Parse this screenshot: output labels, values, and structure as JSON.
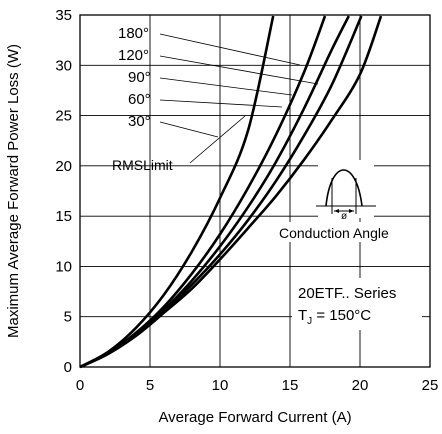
{
  "chart_data": {
    "type": "line",
    "title": "",
    "xlabel": "Average Forward Current (A)",
    "ylabel": "Maximum Average Forward Power Loss (W)",
    "xlim": [
      0,
      25
    ],
    "ylim": [
      0,
      35
    ],
    "x_ticks": [
      0,
      5,
      10,
      15,
      20,
      25
    ],
    "y_ticks": [
      0,
      5,
      10,
      15,
      20,
      25,
      30,
      35
    ],
    "grid": true,
    "series": [
      {
        "name": "180°",
        "x": [
          0,
          2,
          4,
          6,
          8,
          10,
          12,
          14,
          16,
          18,
          20,
          21.5
        ],
        "y": [
          0,
          1.3,
          3.1,
          5.4,
          7.8,
          10.7,
          13.8,
          17.0,
          20.6,
          24.6,
          29.1,
          34.9
        ]
      },
      {
        "name": "120°",
        "x": [
          0,
          2,
          4,
          6,
          8,
          10,
          12,
          14,
          16,
          18,
          20.1
        ],
        "y": [
          0,
          1.3,
          3.2,
          5.5,
          8.2,
          11.2,
          14.6,
          18.5,
          23.0,
          28.1,
          34.9
        ]
      },
      {
        "name": "90°",
        "x": [
          0,
          2,
          4,
          6,
          8,
          10,
          12,
          14,
          16,
          18,
          19.2
        ],
        "y": [
          0,
          1.4,
          3.3,
          5.7,
          8.6,
          12.0,
          15.9,
          20.4,
          25.7,
          31.6,
          34.9
        ]
      },
      {
        "name": "60°",
        "x": [
          0,
          2,
          4,
          6,
          8,
          10,
          12,
          14,
          16,
          17.5
        ],
        "y": [
          0,
          1.4,
          3.4,
          6.0,
          9.3,
          13.2,
          17.8,
          23.1,
          29.3,
          34.9
        ]
      },
      {
        "name": "30°",
        "x": [
          0,
          2,
          4,
          6,
          8,
          10,
          12,
          13.8
        ],
        "y": [
          0,
          1.5,
          3.9,
          7.2,
          11.5,
          16.8,
          23.5,
          34.9
        ]
      }
    ],
    "curve_labels": [
      "180°",
      "120°",
      "90°",
      "60°",
      "30°"
    ],
    "rms_limit_label": "RMSLimit",
    "inset_label": "Conduction Angle",
    "inset_symbol": "ø",
    "annotation_series": "20ETF.. Series",
    "annotation_temp_main": "T",
    "annotation_temp_sub": "J",
    "annotation_temp_value": " = 150°C"
  }
}
